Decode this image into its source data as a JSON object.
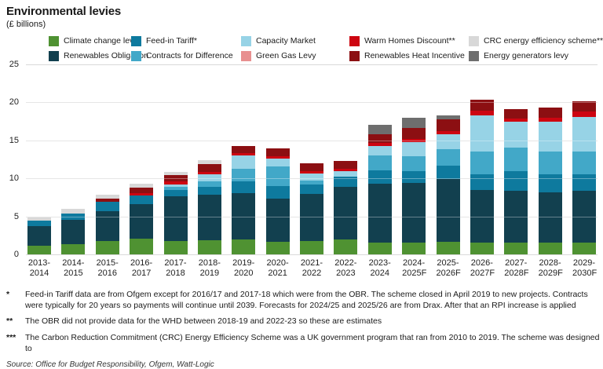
{
  "title": "Environmental levies",
  "subtitle": "(£ billions)",
  "chart_data": {
    "type": "bar",
    "stacked": true,
    "ylim": [
      0,
      25
    ],
    "yticks": [
      0,
      5,
      10,
      15,
      20,
      25
    ],
    "grid": true,
    "legend_position": "top",
    "categories": [
      "2013-2014",
      "2014-2015",
      "2015-2016",
      "2016-2017",
      "2017-2018",
      "2018-2019",
      "2019-2020",
      "2020-2021",
      "2021-2022",
      "2022-2023",
      "2023-2024",
      "2024-2025F",
      "2025-2026F",
      "2026-2027F",
      "2027-2028F",
      "2028-2029F",
      "2029-2030F"
    ],
    "series": [
      {
        "name": "Climate change levy",
        "label": "Climate change levy",
        "color": "#4f9232",
        "values": [
          1.1,
          1.35,
          1.75,
          2.1,
          1.8,
          1.9,
          1.95,
          1.7,
          1.8,
          1.95,
          1.5,
          1.6,
          1.7,
          1.5,
          1.5,
          1.6,
          1.5
        ]
      },
      {
        "name": "Renewables Obligation",
        "label": "Renewables Obligation",
        "color": "#12404f",
        "values": [
          2.6,
          3.2,
          3.9,
          4.5,
          5.85,
          6.0,
          6.1,
          5.65,
          6.2,
          6.9,
          7.8,
          7.8,
          8.2,
          7.0,
          6.9,
          6.6,
          6.9
        ]
      },
      {
        "name": "Feed-in Tariff",
        "label": "Feed-in Tariff*",
        "color": "#0e7a9e",
        "values": [
          0.7,
          0.85,
          1.3,
          1.2,
          0.8,
          1.0,
          1.6,
          1.65,
          1.2,
          1.4,
          1.8,
          1.6,
          1.8,
          2.0,
          2.6,
          2.3,
          2.1
        ]
      },
      {
        "name": "Contracts for Difference",
        "label": "Contracts for Difference",
        "color": "#42a8c8",
        "values": [
          0,
          0,
          0,
          0,
          0.4,
          0.7,
          1.6,
          2.6,
          0.5,
          0,
          1.9,
          1.9,
          2.15,
          3.0,
          3.1,
          3.0,
          3.0
        ]
      },
      {
        "name": "Capacity Market",
        "label": "Capacity Market",
        "color": "#97d3e6",
        "values": [
          0,
          0,
          0,
          0,
          0.4,
          0.9,
          1.75,
          1.05,
          0.95,
          0.7,
          1.25,
          1.9,
          1.95,
          4.8,
          3.35,
          4.0,
          4.6
        ]
      },
      {
        "name": "Green Gas Levy",
        "label": "Green Gas Levy",
        "color": "#e89090",
        "values": [
          0,
          0,
          0,
          0,
          0,
          0,
          0,
          0,
          0,
          0,
          0,
          0,
          0,
          0,
          0,
          0,
          0
        ]
      },
      {
        "name": "Warm Homes Discount",
        "label": "Warm Homes Discount**",
        "color": "#cd0511",
        "values": [
          0,
          0,
          0,
          0.3,
          0.35,
          0.4,
          0.3,
          0.3,
          0.3,
          0.35,
          0.4,
          0.4,
          0.45,
          0.6,
          0.45,
          0.45,
          0.7
        ]
      },
      {
        "name": "Renewables Heat Incentive",
        "label": "Renewables Heat Incentive",
        "color": "#8c0f12",
        "values": [
          0,
          0,
          0.4,
          0.65,
          0.85,
          1.0,
          1.0,
          1.0,
          1.0,
          1.0,
          1.15,
          1.45,
          1.55,
          1.5,
          1.2,
          1.4,
          1.4
        ]
      },
      {
        "name": "CRC energy efficiency scheme",
        "label": "CRC energy efficiency scheme***",
        "color": "#d8d8d8",
        "values": [
          0.6,
          0.6,
          0.55,
          0.55,
          0.45,
          0.5,
          0,
          0,
          0,
          0,
          0,
          0,
          0,
          0,
          0,
          0,
          0
        ]
      },
      {
        "name": "Energy generators levy",
        "label": "Energy generators levy",
        "color": "#6e6e6e",
        "values": [
          0,
          0,
          0,
          0,
          0,
          0,
          0,
          0,
          0,
          0,
          1.3,
          1.3,
          0.45,
          0,
          0,
          0,
          0
        ]
      }
    ]
  },
  "footnotes": [
    {
      "marker": "*",
      "text": "Feed-in Tariff data are from Ofgem except for 2016/17 and 2017-18 which were from the OBR. The scheme closed in April 2019 to new projects. Contracts were typically for 20 years so payments will continue until 2039. Forecasts for 2024/25 and 2025/26 are from Drax. After that an RPI increase is applied"
    },
    {
      "marker": "**",
      "text": "The OBR did not provide data for the WHD between 2018-19 and 2022-23 so these are estimates"
    },
    {
      "marker": "***",
      "text": "The Carbon Reduction Commitment (CRC) Energy Efficiency Scheme was a UK government program that ran from 2010 to 2019. The scheme was designed to"
    }
  ],
  "source": "Source: Office for Budget Responsibility, Ofgem, Watt-Logic"
}
